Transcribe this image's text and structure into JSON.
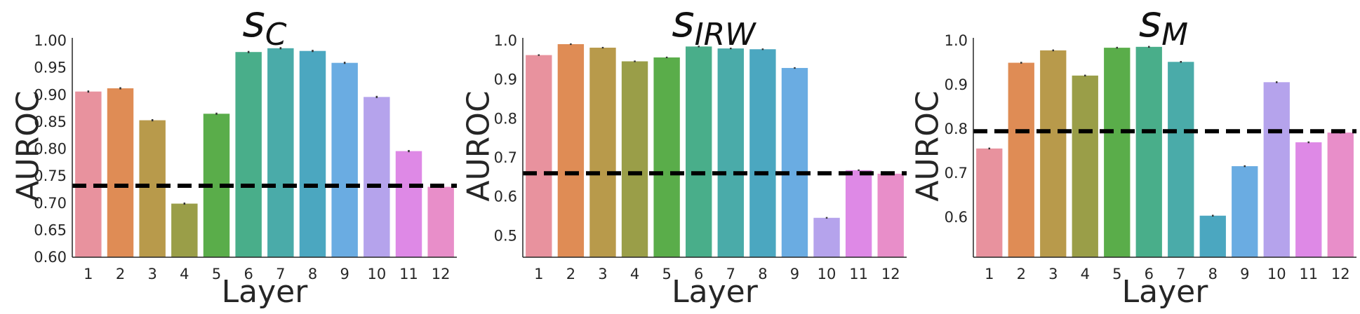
{
  "chart_data": [
    {
      "type": "bar",
      "title_main": "s",
      "title_sub": "C",
      "xlabel": "Layer",
      "ylabel": "AUROC",
      "categories": [
        "1",
        "2",
        "3",
        "4",
        "5",
        "6",
        "7",
        "8",
        "9",
        "10",
        "11",
        "12"
      ],
      "values": [
        0.906,
        0.912,
        0.853,
        0.699,
        0.865,
        0.979,
        0.986,
        0.981,
        0.959,
        0.896,
        0.796,
        0.73
      ],
      "errors": [
        0.002,
        0.002,
        0.002,
        0.002,
        0.002,
        0.002,
        0.002,
        0.002,
        0.002,
        0.002,
        0.002,
        0.002
      ],
      "ylim": [
        0.6,
        1.0
      ],
      "yticks": [
        "0.60",
        "0.65",
        "0.70",
        "0.75",
        "0.80",
        "0.85",
        "0.90",
        "0.95",
        "1.00"
      ],
      "baseline": 0.732,
      "grid": false
    },
    {
      "type": "bar",
      "title_main": "s",
      "title_sub": "IRW",
      "xlabel": "Layer",
      "ylabel": "AUROC",
      "categories": [
        "1",
        "2",
        "3",
        "4",
        "5",
        "6",
        "7",
        "8",
        "9",
        "10",
        "11",
        "12"
      ],
      "values": [
        0.963,
        0.991,
        0.982,
        0.947,
        0.957,
        0.985,
        0.98,
        0.978,
        0.93,
        0.546,
        0.668,
        0.659
      ],
      "errors": [
        0.002,
        0.002,
        0.002,
        0.002,
        0.002,
        0.002,
        0.002,
        0.002,
        0.002,
        0.002,
        0.002,
        0.002
      ],
      "ylim": [
        0.445,
        1.0
      ],
      "yticks": [
        "0.5",
        "0.6",
        "0.7",
        "0.8",
        "0.9",
        "1.0"
      ],
      "baseline": 0.66,
      "grid": false
    },
    {
      "type": "bar",
      "title_main": "s",
      "title_sub": "M",
      "xlabel": "Layer",
      "ylabel": "AUROC",
      "categories": [
        "1",
        "2",
        "3",
        "4",
        "5",
        "6",
        "7",
        "8",
        "9",
        "10",
        "11",
        "12"
      ],
      "values": [
        0.756,
        0.95,
        0.978,
        0.921,
        0.984,
        0.986,
        0.952,
        0.604,
        0.716,
        0.906,
        0.77,
        0.792
      ],
      "errors": [
        0.002,
        0.002,
        0.002,
        0.002,
        0.002,
        0.002,
        0.002,
        0.002,
        0.002,
        0.002,
        0.002,
        0.002
      ],
      "ylim": [
        0.51,
        1.0
      ],
      "yticks": [
        "0.6",
        "0.7",
        "0.8",
        "0.9",
        "1.0"
      ],
      "baseline": 0.795,
      "grid": false
    }
  ],
  "colors": {
    "bars": [
      "#e8929e",
      "#df8c55",
      "#b89a4b",
      "#9a9e48",
      "#5aad4a",
      "#49ae8a",
      "#4aaba9",
      "#4ba7c0",
      "#6aace2",
      "#b5a3ec",
      "#de89e6",
      "#e88ec9"
    ],
    "baseline": "#000000",
    "axis": "#262626"
  }
}
